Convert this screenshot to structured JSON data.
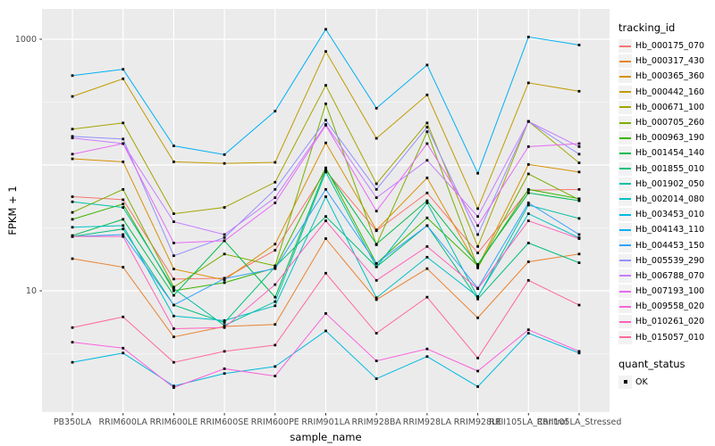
{
  "chart_data": {
    "type": "line",
    "xlabel": "sample_name",
    "ylabel": "FPKM + 1",
    "y_scale": "log10",
    "ylim": [
      1.05,
      1750
    ],
    "y_ticks": [
      {
        "value": 1000,
        "label": "1000"
      },
      {
        "value": 10,
        "label": "10"
      }
    ],
    "grid_major_values": [
      1,
      10,
      100,
      1000
    ],
    "grid_minor_values": [
      3.162,
      31.62,
      316.2
    ],
    "categories": [
      "PB350LA",
      "RRIM600LA",
      "RRIM600LE",
      "RRIM600SE",
      "RRIM600PE",
      "RRIM901LA",
      "RRIM928BA",
      "RRIM928LA",
      "RRIM928LE",
      "RRII105LA_Control",
      "RRII105LA_Stressed"
    ],
    "series": [
      {
        "name": "Hb_000175_070",
        "color": "#F8766D",
        "values": [
          56,
          53,
          12.4,
          12.6,
          21,
          90,
          30,
          60,
          20,
          63,
          64
        ]
      },
      {
        "name": "Hb_000317_430",
        "color": "#EA8331",
        "values": [
          18,
          15.4,
          4.3,
          5.2,
          5.4,
          26,
          8.5,
          15,
          6.1,
          17,
          19.6
        ]
      },
      {
        "name": "Hb_000365_360",
        "color": "#D89000",
        "values": [
          112,
          106,
          14.9,
          12.2,
          23.5,
          150,
          30.5,
          79,
          15.5,
          101,
          88
        ]
      },
      {
        "name": "Hb_000442_160",
        "color": "#C09B00",
        "values": [
          351,
          485,
          106,
          103,
          105,
          800,
          163,
          361,
          45,
          450,
          386
        ]
      },
      {
        "name": "Hb_000671_100",
        "color": "#A3A500",
        "values": [
          193,
          216,
          41,
          46,
          73,
          430,
          71,
          216,
          22.5,
          222,
          104
        ]
      },
      {
        "name": "Hb_000705_260",
        "color": "#7CAE00",
        "values": [
          42,
          64,
          10.7,
          19.6,
          15.8,
          307,
          23.2,
          184,
          15.2,
          85,
          53
        ]
      },
      {
        "name": "Hb_000963_190",
        "color": "#39B600",
        "values": [
          37,
          49,
          10,
          11.6,
          15.2,
          95,
          16.5,
          38,
          15.8,
          64,
          54
        ]
      },
      {
        "name": "Hb_001454_140",
        "color": "#00BB4E",
        "values": [
          27.5,
          37,
          9.2,
          25,
          8.9,
          92,
          23.5,
          52,
          16.2,
          60,
          52
        ]
      },
      {
        "name": "Hb_001855_010",
        "color": "#00BF7D",
        "values": [
          27,
          31,
          7.7,
          5.6,
          15.5,
          39,
          15.5,
          33,
          8.6,
          24,
          16.7
        ]
      },
      {
        "name": "Hb_001902_050",
        "color": "#00C1A3",
        "values": [
          51,
          46,
          10.4,
          5.3,
          8.2,
          88,
          15.5,
          50,
          8.9,
          48,
          37.6
        ]
      },
      {
        "name": "Hb_002014_080",
        "color": "#00BFC4",
        "values": [
          32,
          33,
          6.3,
          5.8,
          7.6,
          56,
          8.8,
          18.5,
          9.0,
          41,
          26.4
        ]
      },
      {
        "name": "Hb_003453_010",
        "color": "#00BAE0",
        "values": [
          2.7,
          3.2,
          1.75,
          2.2,
          2.5,
          4.8,
          2.0,
          3.0,
          1.73,
          4.6,
          3.2
        ]
      },
      {
        "name": "Hb_004143_110",
        "color": "#00B0F6",
        "values": [
          514,
          577,
          142,
          121,
          268,
          1200,
          283,
          624,
          86,
          1043,
          900
        ]
      },
      {
        "name": "Hb_004453_150",
        "color": "#35A2FF",
        "values": [
          27,
          28,
          7.7,
          12.5,
          15.0,
          64,
          16.5,
          33,
          10.5,
          50,
          28
        ]
      },
      {
        "name": "Hb_005539_290",
        "color": "#9590FF",
        "values": [
          169,
          161,
          19,
          26.5,
          64,
          227,
          64,
          200,
          28,
          222,
          122
        ]
      },
      {
        "name": "Hb_006788_070",
        "color": "#C77CFF",
        "values": [
          164,
          148,
          35.4,
          28,
          55,
          210,
          55,
          109,
          39,
          222,
          140
        ]
      },
      {
        "name": "Hb_007193_100",
        "color": "#E76BF3",
        "values": [
          122,
          148,
          24,
          25,
          50,
          207,
          43,
          148,
          33,
          140,
          148
        ]
      },
      {
        "name": "Hb_009558_020",
        "color": "#FA62DB",
        "values": [
          3.9,
          3.5,
          1.7,
          2.4,
          2.1,
          6.6,
          2.77,
          3.45,
          2.3,
          4.9,
          3.3
        ]
      },
      {
        "name": "Hb_010261_020",
        "color": "#FF62BC",
        "values": [
          27,
          27,
          5.0,
          5.1,
          11.2,
          36,
          12.1,
          22.5,
          10.4,
          36,
          26
        ]
      },
      {
        "name": "Hb_015057_010",
        "color": "#FF6A98",
        "values": [
          5.1,
          6.2,
          2.7,
          3.3,
          3.7,
          13.8,
          4.6,
          8.9,
          2.92,
          12.1,
          7.7
        ]
      }
    ],
    "marker": {
      "shape": "square",
      "color": "#000000",
      "label": "OK"
    },
    "legend": {
      "position": "right",
      "tracking_title": "tracking_id",
      "quant_title": "quant_status",
      "quant_label": "OK"
    },
    "colors": {
      "panel_background": "#EBEBEB",
      "gridline": "#FFFFFF",
      "tick_text": "#4D4D4D",
      "legend_key_background": "#F2F2F2"
    }
  }
}
